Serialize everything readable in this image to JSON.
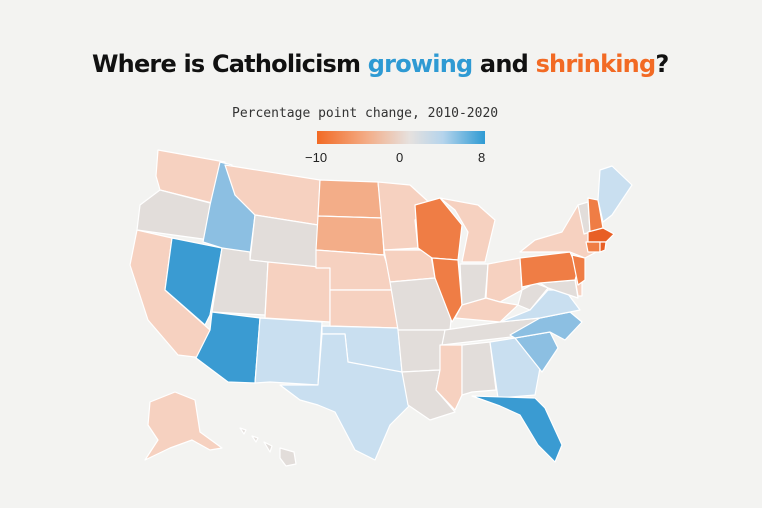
{
  "title": {
    "prefix": "Where is Catholicism ",
    "growing": "growing",
    "middle": " and ",
    "shrinking": "shrinking",
    "suffix": "?"
  },
  "colors": {
    "growing": "#2e9ad3",
    "shrinking": "#f26a24",
    "growing_strong": "#3a9bd2",
    "growing_medium": "#8cbfe2",
    "growing_light": "#c9dff0",
    "neutral": "#e2ddda",
    "shrinking_light": "#f6d1c0",
    "shrinking_medium": "#f3ad88",
    "shrinking_strong": "#ef7d45",
    "shrinking_max": "#e85f25"
  },
  "legend": {
    "title": "Percentage point change, 2010-2020",
    "min_label": "−10",
    "mid_label": "0",
    "max_label": "8",
    "min": -10,
    "max": 8
  },
  "state_classes": {
    "WA": "shrinking_light",
    "OR": "neutral",
    "CA": "shrinking_light",
    "NV": "growing_strong",
    "ID": "growing_medium",
    "MT": "shrinking_light",
    "WY": "neutral",
    "UT": "neutral",
    "AZ": "growing_strong",
    "NM": "growing_light",
    "CO": "shrinking_light",
    "ND": "shrinking_medium",
    "SD": "shrinking_medium",
    "NE": "shrinking_light",
    "KS": "shrinking_light",
    "OK": "growing_light",
    "TX": "growing_light",
    "MN": "shrinking_light",
    "IA": "shrinking_light",
    "MO": "neutral",
    "AR": "neutral",
    "LA": "neutral",
    "WI": "shrinking_strong",
    "IL": "shrinking_strong",
    "MI": "shrinking_light",
    "IN": "neutral",
    "OH": "shrinking_light",
    "KY": "shrinking_light",
    "TN": "neutral",
    "MS": "shrinking_light",
    "AL": "neutral",
    "GA": "growing_light",
    "FL": "growing_strong",
    "SC": "growing_medium",
    "NC": "growing_medium",
    "VA": "growing_light",
    "WV": "neutral",
    "PA": "shrinking_strong",
    "NY": "shrinking_light",
    "VT": "neutral",
    "ME": "growing_light",
    "NH": "shrinking_strong",
    "MA": "shrinking_max",
    "RI": "shrinking_max",
    "CT": "shrinking_strong",
    "NJ": "shrinking_strong",
    "DE": "shrinking_light",
    "MD": "neutral",
    "AK": "shrinking_light",
    "HI": "neutral"
  }
}
